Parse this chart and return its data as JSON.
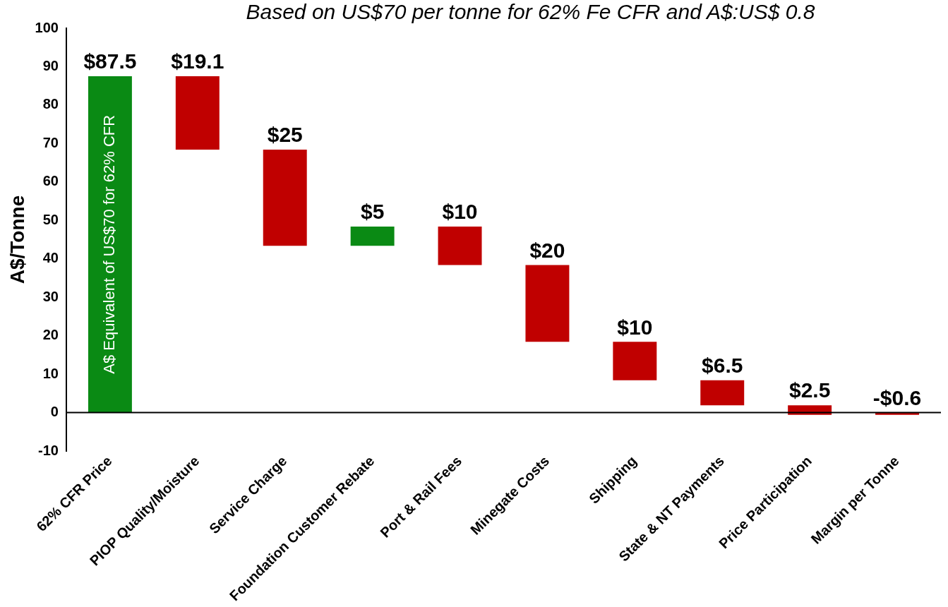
{
  "chart_data": {
    "type": "bar",
    "title": "Based on US$70 per tonne for 62% Fe CFR and A$:US$ 0.8",
    "ylabel": "A$/Tonne",
    "categories": [
      "62% CFR Price",
      "PIOP Quality/Moisture",
      "Service Charge",
      "Foundation Customer Rebate",
      "Port & Rail Fees",
      "Minegate Costs",
      "Shipping",
      "State & NT Payments",
      "Price Participation",
      "Margin per Tonne"
    ],
    "values": [
      87.5,
      19.1,
      25,
      5,
      10,
      20,
      10,
      6.5,
      2.5,
      -0.6
    ],
    "base": [
      0,
      68.4,
      43.4,
      43.4,
      38.4,
      18.4,
      8.4,
      1.9,
      -0.6,
      0
    ],
    "colors": [
      "#0a8a14",
      "#c00000",
      "#c00000",
      "#0a8a14",
      "#c00000",
      "#c00000",
      "#c00000",
      "#c00000",
      "#c00000",
      "#c00000"
    ],
    "value_labels": [
      "$87.5",
      "$19.1",
      "$25",
      "$5",
      "$10",
      "$20",
      "$10",
      "$6.5",
      "$2.5",
      "-$0.6"
    ],
    "annotations": [
      "A$ Equivalent of US$70 for 62% CFR"
    ],
    "ref_lines": [
      {
        "axis": "y",
        "value": 0,
        "color": "#000000"
      }
    ],
    "ylim": [
      -10,
      100
    ],
    "yticks": [
      -10,
      0,
      10,
      20,
      30,
      40,
      50,
      60,
      70,
      80,
      90,
      100
    ],
    "grid": false,
    "legend": false
  }
}
